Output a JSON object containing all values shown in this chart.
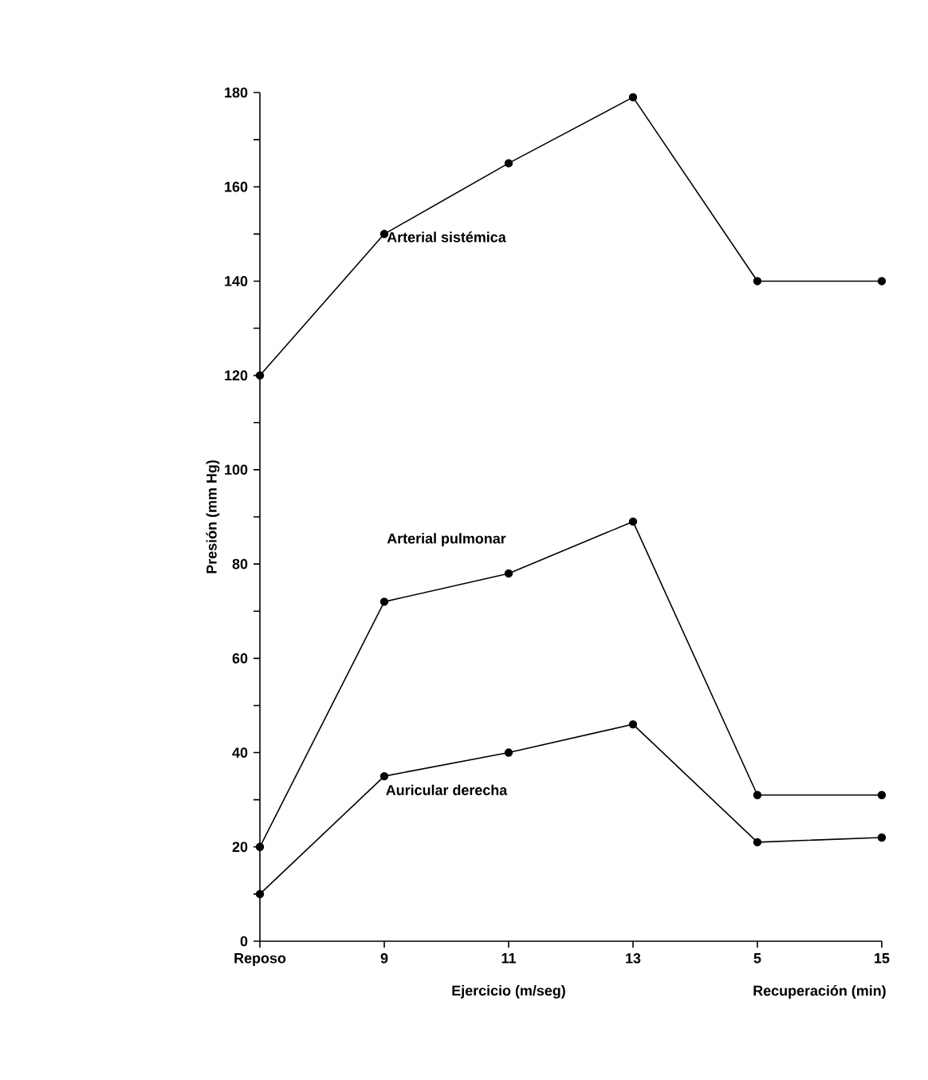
{
  "chart_data": {
    "type": "line",
    "ylabel": "Presión (mm Hg)",
    "xlabel": "Ejercicio (m/seg)",
    "annotations": [
      "Recuperación (min)"
    ],
    "categories": [
      "Reposo",
      "9",
      "11",
      "13",
      "5",
      "15"
    ],
    "series": [
      {
        "name": "Arterial sistémica",
        "color": "#000000",
        "values": [
          120,
          150,
          165,
          179,
          140,
          140
        ]
      },
      {
        "name": "Arterial pulmonar",
        "color": "#000000",
        "values": [
          20,
          72,
          78,
          89,
          31,
          31
        ]
      },
      {
        "name": "Auricular derecha",
        "color": "#000000",
        "values": [
          10,
          35,
          40,
          46,
          21,
          22
        ]
      }
    ],
    "ylim": [
      0,
      180
    ],
    "yticks": [
      0,
      {
        "value": 10,
        "label": null
      },
      20,
      {
        "value": 30,
        "label": null
      },
      40,
      {
        "value": 50,
        "label": null
      },
      60,
      {
        "value": 70,
        "label": null
      },
      80,
      {
        "value": 90,
        "label": null
      },
      100,
      {
        "value": 110,
        "label": null
      },
      120,
      {
        "value": 130,
        "label": null
      },
      140,
      {
        "value": 150,
        "label": null
      },
      160,
      {
        "value": 170,
        "label": null
      },
      180
    ],
    "marker": "circle",
    "line_style": "solid",
    "grid": false,
    "legend": false
  }
}
